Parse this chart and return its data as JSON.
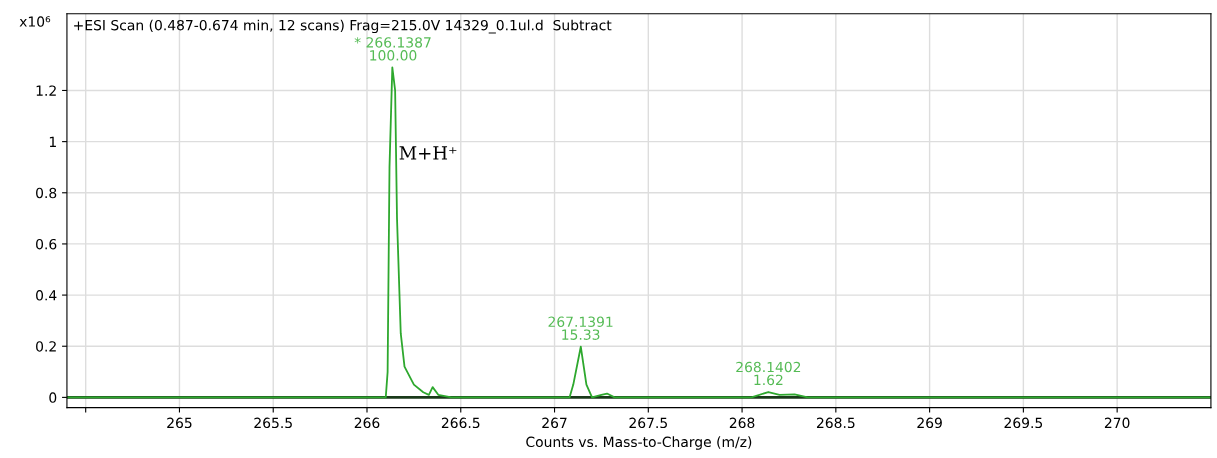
{
  "chart_data": {
    "type": "line",
    "title": "+ESI Scan (0.487-0.674 min, 12 scans) Frag=215.0V 14329_0.1ul.d  Subtract",
    "xlabel": "Counts vs. Mass-to-Charge (m/z)",
    "ylabel": "x10⁶",
    "x": [
      264.4,
      266.1,
      266.11,
      266.12,
      266.135,
      266.15,
      266.16,
      266.18,
      266.2,
      266.25,
      266.3,
      266.33,
      266.35,
      266.38,
      266.45,
      267.08,
      267.1,
      267.14,
      267.17,
      267.2,
      267.25,
      267.28,
      267.32,
      268.05,
      268.14,
      268.2,
      268.28,
      268.35,
      270.5
    ],
    "series": [
      {
        "color": "#2ea82e",
        "values": [
          0,
          0,
          0.1,
          0.9,
          1.29,
          1.2,
          0.7,
          0.25,
          0.12,
          0.05,
          0.02,
          0.01,
          0.04,
          0.01,
          0,
          0,
          0.05,
          0.198,
          0.05,
          0,
          0.01,
          0.015,
          0,
          0,
          0.021,
          0.01,
          0.012,
          0,
          0
        ]
      }
    ],
    "annotations": [
      {
        "text": "* 266.1387\n100.00",
        "x": 266.1387,
        "y": 1.29
      },
      {
        "text": "267.1391\n15.33",
        "x": 267.1391,
        "y": 0.198
      },
      {
        "text": "268.1402\n1.62",
        "x": 268.1402,
        "y": 0.021
      },
      "M+H⁺"
    ],
    "xlim": [
      264.4,
      270.5
    ],
    "xticks": [
      {
        "value": 264.5,
        "label": null
      },
      265,
      265.5,
      266,
      266.5,
      267,
      267.5,
      268,
      268.5,
      269,
      269.5,
      270
    ],
    "ylim": [
      -0.04,
      1.5
    ],
    "yticks": [
      0,
      0.2,
      0.4,
      0.6,
      0.8,
      1,
      1.2
    ],
    "grid": true,
    "legend": false,
    "marker": "none",
    "line_style": "solid"
  }
}
